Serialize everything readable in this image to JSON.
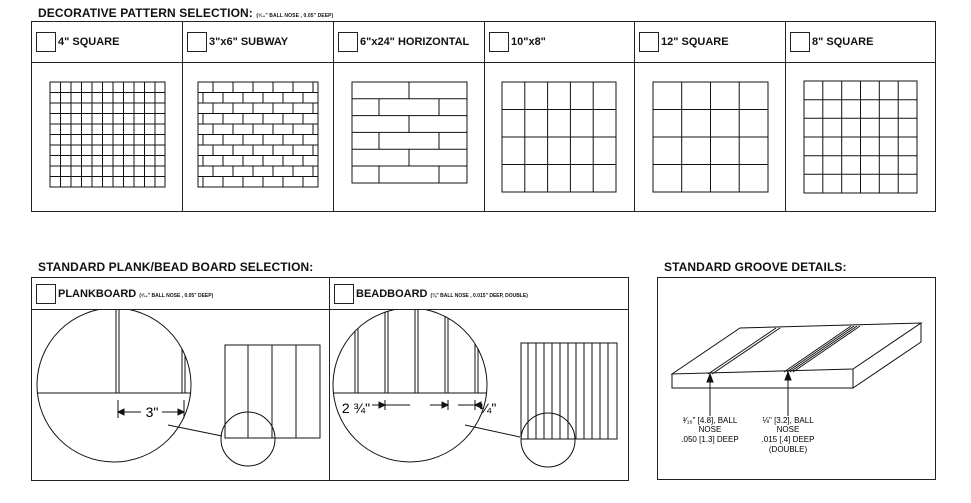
{
  "decorative": {
    "title": "DECORATIVE PATTERN SELECTION:",
    "title_note": "(³⁄₁₆\" BALL NOSE , 0.05\" DEEP)",
    "patterns": [
      {
        "label": "4\" SQUARE"
      },
      {
        "label": "3\"x6\" SUBWAY"
      },
      {
        "label": "6\"x24\" HORIZONTAL"
      },
      {
        "label": "10\"x8\""
      },
      {
        "label": "12\" SQUARE"
      },
      {
        "label": "8\" SQUARE"
      }
    ]
  },
  "plank": {
    "title": "STANDARD PLANK/BEAD BOARD SELECTION:",
    "plankboard_label": "PLANKBOARD",
    "plankboard_note": "(³⁄₁₆\" BALL NOSE , 0.05\" DEEP)",
    "plankboard_dim": "3\"",
    "beadboard_label": "BEADBOARD",
    "beadboard_note": "(⅛\" BALL NOSE , 0.015\" DEEP, DOUBLE)",
    "beadboard_dim1": "2 ¾\"",
    "beadboard_dim2": "¼\""
  },
  "groove": {
    "title": "STANDARD GROOVE DETAILS:",
    "left_line1": "³⁄₁₆\" [4.8], BALL",
    "left_line2": "NOSE",
    "left_line3": ".050 [1.3] DEEP",
    "right_line1": "⅛\" [3.2], BALL",
    "right_line2": "NOSE",
    "right_line3": ".015 [.4] DEEP",
    "right_line4": "(DOUBLE)"
  }
}
